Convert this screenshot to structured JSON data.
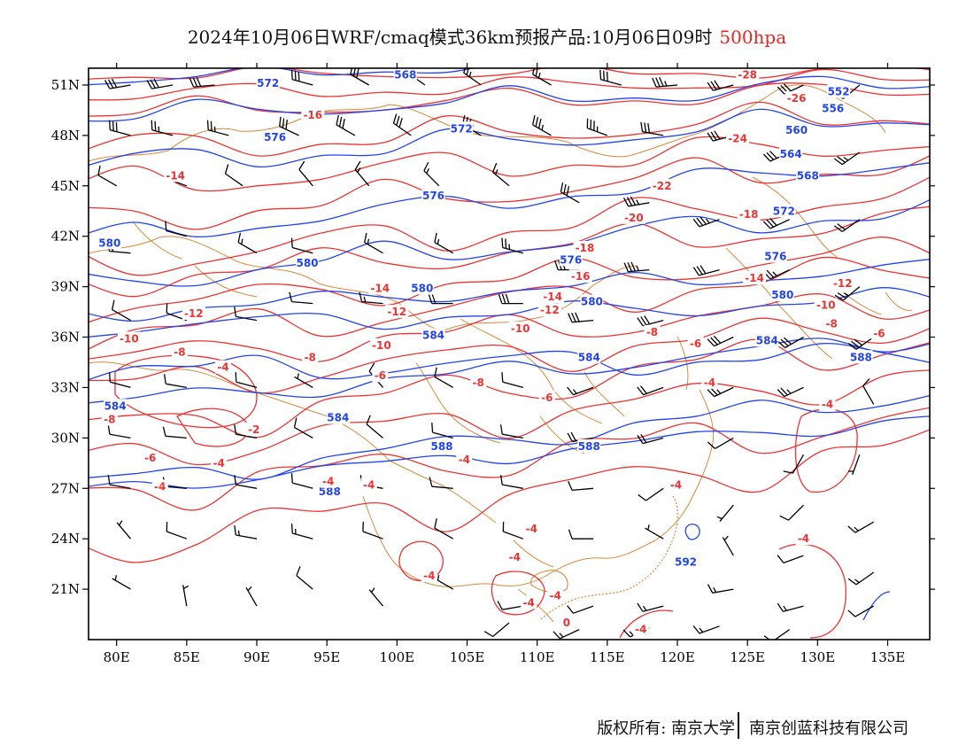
{
  "title": {
    "text": "2024年10月06日WRF/cmaq模式36km预报产品:10月06日09时",
    "level": "500hpa"
  },
  "map": {
    "lon_range": [
      78,
      138
    ],
    "lat_range": [
      18,
      52
    ],
    "xticks": [
      "80E",
      "85E",
      "90E",
      "95E",
      "100E",
      "105E",
      "110E",
      "115E",
      "120E",
      "125E",
      "130E",
      "135E"
    ],
    "xtick_values": [
      80,
      85,
      90,
      95,
      100,
      105,
      110,
      115,
      120,
      125,
      130,
      135
    ],
    "yticks": [
      "51N",
      "48N",
      "45N",
      "42N",
      "39N",
      "36N",
      "33N",
      "30N",
      "27N",
      "24N",
      "21N"
    ],
    "ytick_values": [
      51,
      48,
      45,
      42,
      39,
      36,
      33,
      30,
      27,
      24,
      21
    ],
    "colors": {
      "height_contour": "#2244ee",
      "temperature_contour": "#ee3333",
      "boundary": "#d98a3a",
      "wind_barb": "#000000"
    },
    "height_labels": [
      {
        "text": "572",
        "lon": 90.8,
        "lat": 51.1
      },
      {
        "text": "568",
        "lon": 100.6,
        "lat": 51.6
      },
      {
        "text": "552",
        "lon": 131.5,
        "lat": 50.6
      },
      {
        "text": "556",
        "lon": 131.1,
        "lat": 49.6
      },
      {
        "text": "576",
        "lon": 91.3,
        "lat": 47.9
      },
      {
        "text": "572",
        "lon": 104.6,
        "lat": 48.4
      },
      {
        "text": "560",
        "lon": 128.5,
        "lat": 48.3
      },
      {
        "text": "564",
        "lon": 128.1,
        "lat": 46.9
      },
      {
        "text": "568",
        "lon": 129.3,
        "lat": 45.6
      },
      {
        "text": "576",
        "lon": 102.6,
        "lat": 44.4
      },
      {
        "text": "572",
        "lon": 127.6,
        "lat": 43.5
      },
      {
        "text": "580",
        "lon": 79.5,
        "lat": 41.6
      },
      {
        "text": "580",
        "lon": 93.6,
        "lat": 40.4
      },
      {
        "text": "576",
        "lon": 112.4,
        "lat": 40.6
      },
      {
        "text": "576",
        "lon": 127.0,
        "lat": 40.8
      },
      {
        "text": "580",
        "lon": 101.8,
        "lat": 38.9
      },
      {
        "text": "580",
        "lon": 113.9,
        "lat": 38.1
      },
      {
        "text": "580",
        "lon": 127.5,
        "lat": 38.5
      },
      {
        "text": "584",
        "lon": 102.6,
        "lat": 36.1
      },
      {
        "text": "584",
        "lon": 126.4,
        "lat": 35.8
      },
      {
        "text": "584",
        "lon": 113.7,
        "lat": 34.8
      },
      {
        "text": "588",
        "lon": 133.1,
        "lat": 34.8
      },
      {
        "text": "584",
        "lon": 79.9,
        "lat": 31.9
      },
      {
        "text": "584",
        "lon": 95.8,
        "lat": 31.2
      },
      {
        "text": "588",
        "lon": 103.2,
        "lat": 29.5
      },
      {
        "text": "588",
        "lon": 113.7,
        "lat": 29.5
      },
      {
        "text": "588",
        "lon": 95.2,
        "lat": 26.8
      },
      {
        "text": "592",
        "lon": 120.6,
        "lat": 22.6
      }
    ],
    "temperature_labels": [
      {
        "text": "-28",
        "lon": 125.0,
        "lat": 51.6
      },
      {
        "text": "-26",
        "lon": 128.5,
        "lat": 50.2
      },
      {
        "text": "-16",
        "lon": 94.0,
        "lat": 49.2
      },
      {
        "text": "-24",
        "lon": 124.3,
        "lat": 47.8
      },
      {
        "text": "-14",
        "lon": 84.2,
        "lat": 45.6
      },
      {
        "text": "-22",
        "lon": 118.9,
        "lat": 45.0
      },
      {
        "text": "-20",
        "lon": 116.9,
        "lat": 43.1
      },
      {
        "text": "-18",
        "lon": 125.1,
        "lat": 43.3
      },
      {
        "text": "-18",
        "lon": 113.4,
        "lat": 41.3
      },
      {
        "text": "-16",
        "lon": 113.1,
        "lat": 39.6
      },
      {
        "text": "-14",
        "lon": 125.5,
        "lat": 39.5
      },
      {
        "text": "-12",
        "lon": 131.8,
        "lat": 39.2
      },
      {
        "text": "-14",
        "lon": 98.8,
        "lat": 38.9
      },
      {
        "text": "-14",
        "lon": 111.1,
        "lat": 38.4
      },
      {
        "text": "-12",
        "lon": 110.9,
        "lat": 37.6
      },
      {
        "text": "-10",
        "lon": 130.6,
        "lat": 37.9
      },
      {
        "text": "-12",
        "lon": 85.5,
        "lat": 37.4
      },
      {
        "text": "-12",
        "lon": 100.0,
        "lat": 37.5
      },
      {
        "text": "-10",
        "lon": 108.8,
        "lat": 36.5
      },
      {
        "text": "-8",
        "lon": 118.2,
        "lat": 36.3
      },
      {
        "text": "-8",
        "lon": 131.0,
        "lat": 36.8
      },
      {
        "text": "-10",
        "lon": 80.9,
        "lat": 35.9
      },
      {
        "text": "-10",
        "lon": 98.9,
        "lat": 35.5
      },
      {
        "text": "-6",
        "lon": 121.3,
        "lat": 35.6
      },
      {
        "text": "-6",
        "lon": 134.4,
        "lat": 36.2
      },
      {
        "text": "-8",
        "lon": 84.5,
        "lat": 35.1
      },
      {
        "text": "-8",
        "lon": 93.8,
        "lat": 34.8
      },
      {
        "text": "-6",
        "lon": 98.8,
        "lat": 33.7
      },
      {
        "text": "-8",
        "lon": 105.8,
        "lat": 33.3
      },
      {
        "text": "-4",
        "lon": 122.3,
        "lat": 33.3
      },
      {
        "text": "-6",
        "lon": 110.7,
        "lat": 32.4
      },
      {
        "text": "-4",
        "lon": 87.6,
        "lat": 34.2
      },
      {
        "text": "-4",
        "lon": 130.7,
        "lat": 32.0
      },
      {
        "text": "-8",
        "lon": 79.5,
        "lat": 31.1
      },
      {
        "text": "-2",
        "lon": 89.8,
        "lat": 30.5
      },
      {
        "text": "-6",
        "lon": 82.4,
        "lat": 28.8
      },
      {
        "text": "-4",
        "lon": 87.3,
        "lat": 28.5
      },
      {
        "text": "-4",
        "lon": 104.8,
        "lat": 28.7
      },
      {
        "text": "-4",
        "lon": 83.1,
        "lat": 27.1
      },
      {
        "text": "-4",
        "lon": 95.1,
        "lat": 27.4
      },
      {
        "text": "-4",
        "lon": 98.0,
        "lat": 27.2
      },
      {
        "text": "-4",
        "lon": 119.9,
        "lat": 27.2
      },
      {
        "text": "-4",
        "lon": 109.6,
        "lat": 24.6
      },
      {
        "text": "-4",
        "lon": 129.0,
        "lat": 24.0
      },
      {
        "text": "-4",
        "lon": 108.4,
        "lat": 22.9
      },
      {
        "text": "-4",
        "lon": 102.3,
        "lat": 21.8
      },
      {
        "text": "-4",
        "lon": 109.4,
        "lat": 20.2
      },
      {
        "text": "-4",
        "lon": 111.3,
        "lat": 20.6
      },
      {
        "text": "0",
        "lon": 112.1,
        "lat": 19.0
      },
      {
        "text": "-4",
        "lon": 117.4,
        "lat": 18.6
      }
    ],
    "wind_barbs": [
      {
        "lon": 81,
        "lat": 51,
        "dir": 260,
        "spd": 30
      },
      {
        "lon": 84,
        "lat": 51,
        "dir": 260,
        "spd": 30
      },
      {
        "lon": 87,
        "lat": 51,
        "dir": 265,
        "spd": 30
      },
      {
        "lon": 94,
        "lat": 51,
        "dir": 285,
        "spd": 30
      },
      {
        "lon": 98,
        "lat": 51,
        "dir": 300,
        "spd": 30
      },
      {
        "lon": 102,
        "lat": 51,
        "dir": 305,
        "spd": 25
      },
      {
        "lon": 106,
        "lat": 51,
        "dir": 305,
        "spd": 25
      },
      {
        "lon": 111,
        "lat": 51,
        "dir": 300,
        "spd": 25
      },
      {
        "lon": 116,
        "lat": 51,
        "dir": 285,
        "spd": 30
      },
      {
        "lon": 120,
        "lat": 51,
        "dir": 265,
        "spd": 35
      },
      {
        "lon": 124,
        "lat": 51,
        "dir": 255,
        "spd": 30
      },
      {
        "lon": 129,
        "lat": 51,
        "dir": 245,
        "spd": 30
      },
      {
        "lon": 133,
        "lat": 51,
        "dir": 230,
        "spd": 30
      },
      {
        "lon": 81,
        "lat": 48,
        "dir": 285,
        "spd": 30
      },
      {
        "lon": 84,
        "lat": 48,
        "dir": 285,
        "spd": 25
      },
      {
        "lon": 88,
        "lat": 48,
        "dir": 285,
        "spd": 25
      },
      {
        "lon": 93,
        "lat": 48,
        "dir": 295,
        "spd": 30
      },
      {
        "lon": 97,
        "lat": 48,
        "dir": 300,
        "spd": 30
      },
      {
        "lon": 101,
        "lat": 48,
        "dir": 305,
        "spd": 30
      },
      {
        "lon": 106,
        "lat": 48,
        "dir": 300,
        "spd": 35
      },
      {
        "lon": 111,
        "lat": 48,
        "dir": 300,
        "spd": 35
      },
      {
        "lon": 115,
        "lat": 48,
        "dir": 290,
        "spd": 35
      },
      {
        "lon": 119,
        "lat": 48,
        "dir": 280,
        "spd": 30
      },
      {
        "lon": 124,
        "lat": 48,
        "dir": 255,
        "spd": 30
      },
      {
        "lon": 128,
        "lat": 47,
        "dir": 245,
        "spd": 30
      },
      {
        "lon": 133,
        "lat": 47,
        "dir": 235,
        "spd": 25
      },
      {
        "lon": 80,
        "lat": 45,
        "dir": 300,
        "spd": 10
      },
      {
        "lon": 85,
        "lat": 45,
        "dir": 290,
        "spd": 10
      },
      {
        "lon": 89,
        "lat": 45,
        "dir": 305,
        "spd": 10
      },
      {
        "lon": 94,
        "lat": 45,
        "dir": 320,
        "spd": 10
      },
      {
        "lon": 98,
        "lat": 45,
        "dir": 320,
        "spd": 15
      },
      {
        "lon": 103,
        "lat": 45,
        "dir": 315,
        "spd": 15
      },
      {
        "lon": 108,
        "lat": 45,
        "dir": 310,
        "spd": 15
      },
      {
        "lon": 113,
        "lat": 44,
        "dir": 300,
        "spd": 30
      },
      {
        "lon": 118,
        "lat": 44,
        "dir": 260,
        "spd": 35
      },
      {
        "lon": 123,
        "lat": 43,
        "dir": 250,
        "spd": 35
      },
      {
        "lon": 128,
        "lat": 43,
        "dir": 245,
        "spd": 30
      },
      {
        "lon": 133,
        "lat": 43,
        "dir": 235,
        "spd": 20
      },
      {
        "lon": 81,
        "lat": 41,
        "dir": 275,
        "spd": 20
      },
      {
        "lon": 85,
        "lat": 42,
        "dir": 285,
        "spd": 10
      },
      {
        "lon": 90,
        "lat": 41,
        "dir": 300,
        "spd": 15
      },
      {
        "lon": 94,
        "lat": 41,
        "dir": 285,
        "spd": 10
      },
      {
        "lon": 99,
        "lat": 41,
        "dir": 300,
        "spd": 15
      },
      {
        "lon": 104,
        "lat": 41,
        "dir": 300,
        "spd": 15
      },
      {
        "lon": 109,
        "lat": 41,
        "dir": 285,
        "spd": 25
      },
      {
        "lon": 113,
        "lat": 40,
        "dir": 270,
        "spd": 30
      },
      {
        "lon": 118,
        "lat": 40,
        "dir": 265,
        "spd": 35
      },
      {
        "lon": 123,
        "lat": 40,
        "dir": 255,
        "spd": 30
      },
      {
        "lon": 128,
        "lat": 40,
        "dir": 245,
        "spd": 25
      },
      {
        "lon": 133,
        "lat": 39,
        "dir": 230,
        "spd": 25
      },
      {
        "lon": 81,
        "lat": 37,
        "dir": 300,
        "spd": 10
      },
      {
        "lon": 85,
        "lat": 37,
        "dir": 290,
        "spd": 10
      },
      {
        "lon": 90,
        "lat": 37,
        "dir": 280,
        "spd": 10
      },
      {
        "lon": 94,
        "lat": 38,
        "dir": 275,
        "spd": 10
      },
      {
        "lon": 99,
        "lat": 38,
        "dir": 275,
        "spd": 15
      },
      {
        "lon": 104,
        "lat": 38,
        "dir": 270,
        "spd": 20
      },
      {
        "lon": 109,
        "lat": 38,
        "dir": 270,
        "spd": 30
      },
      {
        "lon": 114,
        "lat": 37,
        "dir": 265,
        "spd": 30
      },
      {
        "lon": 119,
        "lat": 37,
        "dir": 255,
        "spd": 30
      },
      {
        "lon": 124,
        "lat": 36,
        "dir": 245,
        "spd": 30
      },
      {
        "lon": 129,
        "lat": 36,
        "dir": 240,
        "spd": 30
      },
      {
        "lon": 134,
        "lat": 36,
        "dir": 235,
        "spd": 30
      },
      {
        "lon": 81,
        "lat": 33,
        "dir": 285,
        "spd": 10
      },
      {
        "lon": 85,
        "lat": 33,
        "dir": 280,
        "spd": 10
      },
      {
        "lon": 90,
        "lat": 33,
        "dir": 285,
        "spd": 10
      },
      {
        "lon": 94,
        "lat": 33,
        "dir": 300,
        "spd": 5
      },
      {
        "lon": 99,
        "lat": 33,
        "dir": 320,
        "spd": 10
      },
      {
        "lon": 104,
        "lat": 33,
        "dir": 300,
        "spd": 10
      },
      {
        "lon": 109,
        "lat": 33,
        "dir": 285,
        "spd": 10
      },
      {
        "lon": 114,
        "lat": 33,
        "dir": 250,
        "spd": 15
      },
      {
        "lon": 119,
        "lat": 33,
        "dir": 250,
        "spd": 20
      },
      {
        "lon": 124,
        "lat": 33,
        "dir": 245,
        "spd": 25
      },
      {
        "lon": 129,
        "lat": 33,
        "dir": 245,
        "spd": 25
      },
      {
        "lon": 134,
        "lat": 32,
        "dir": 330,
        "spd": 10
      },
      {
        "lon": 81,
        "lat": 30,
        "dir": 280,
        "spd": 10
      },
      {
        "lon": 85,
        "lat": 30,
        "dir": 275,
        "spd": 10
      },
      {
        "lon": 90,
        "lat": 30,
        "dir": 280,
        "spd": 10
      },
      {
        "lon": 94,
        "lat": 30,
        "dir": 300,
        "spd": 10
      },
      {
        "lon": 99,
        "lat": 30,
        "dir": 310,
        "spd": 10
      },
      {
        "lon": 104,
        "lat": 30,
        "dir": 285,
        "spd": 10
      },
      {
        "lon": 109,
        "lat": 30,
        "dir": 280,
        "spd": 10
      },
      {
        "lon": 114,
        "lat": 30,
        "dir": 260,
        "spd": 20
      },
      {
        "lon": 119,
        "lat": 30,
        "dir": 255,
        "spd": 20
      },
      {
        "lon": 124,
        "lat": 30,
        "dir": 240,
        "spd": 10
      },
      {
        "lon": 129,
        "lat": 29,
        "dir": 210,
        "spd": 10
      },
      {
        "lon": 133,
        "lat": 29,
        "dir": 200,
        "spd": 5
      },
      {
        "lon": 81,
        "lat": 27,
        "dir": 280,
        "spd": 10
      },
      {
        "lon": 85,
        "lat": 27,
        "dir": 275,
        "spd": 10
      },
      {
        "lon": 90,
        "lat": 27,
        "dir": 280,
        "spd": 10
      },
      {
        "lon": 94,
        "lat": 27,
        "dir": 285,
        "spd": 10
      },
      {
        "lon": 99,
        "lat": 27,
        "dir": 280,
        "spd": 10
      },
      {
        "lon": 104,
        "lat": 27,
        "dir": 275,
        "spd": 10
      },
      {
        "lon": 109,
        "lat": 27,
        "dir": 280,
        "spd": 10
      },
      {
        "lon": 114,
        "lat": 27,
        "dir": 265,
        "spd": 10
      },
      {
        "lon": 119,
        "lat": 27,
        "dir": 235,
        "spd": 10
      },
      {
        "lon": 124,
        "lat": 26,
        "dir": 220,
        "spd": 5
      },
      {
        "lon": 129,
        "lat": 26,
        "dir": 225,
        "spd": 10
      },
      {
        "lon": 134,
        "lat": 25,
        "dir": 240,
        "spd": 15
      },
      {
        "lon": 81,
        "lat": 24,
        "dir": 320,
        "spd": 5
      },
      {
        "lon": 85,
        "lat": 24,
        "dir": 290,
        "spd": 10
      },
      {
        "lon": 90,
        "lat": 24,
        "dir": 280,
        "spd": 15
      },
      {
        "lon": 94,
        "lat": 24,
        "dir": 285,
        "spd": 15
      },
      {
        "lon": 99,
        "lat": 24,
        "dir": 290,
        "spd": 10
      },
      {
        "lon": 104,
        "lat": 24,
        "dir": 300,
        "spd": 10
      },
      {
        "lon": 109,
        "lat": 24,
        "dir": 290,
        "spd": 10
      },
      {
        "lon": 114,
        "lat": 24,
        "dir": 270,
        "spd": 10
      },
      {
        "lon": 119,
        "lat": 24,
        "dir": 300,
        "spd": 5
      },
      {
        "lon": 124,
        "lat": 23,
        "dir": 330,
        "spd": 5
      },
      {
        "lon": 129,
        "lat": 23,
        "dir": 250,
        "spd": 10
      },
      {
        "lon": 134,
        "lat": 22,
        "dir": 235,
        "spd": 15
      },
      {
        "lon": 81,
        "lat": 21,
        "dir": 300,
        "spd": 5
      },
      {
        "lon": 85,
        "lat": 20,
        "dir": 350,
        "spd": 5
      },
      {
        "lon": 90,
        "lat": 20,
        "dir": 330,
        "spd": 5
      },
      {
        "lon": 94,
        "lat": 21,
        "dir": 310,
        "spd": 10
      },
      {
        "lon": 99,
        "lat": 20,
        "dir": 320,
        "spd": 5
      },
      {
        "lon": 104,
        "lat": 21,
        "dir": 300,
        "spd": 5
      },
      {
        "lon": 109,
        "lat": 20,
        "dir": 260,
        "spd": 10
      },
      {
        "lon": 114,
        "lat": 20,
        "dir": 250,
        "spd": 10
      },
      {
        "lon": 119,
        "lat": 20,
        "dir": 255,
        "spd": 15
      },
      {
        "lon": 124,
        "lat": 21,
        "dir": 260,
        "spd": 15
      },
      {
        "lon": 129,
        "lat": 20,
        "dir": 255,
        "spd": 15
      },
      {
        "lon": 134,
        "lat": 20,
        "dir": 240,
        "spd": 10
      },
      {
        "lon": 108,
        "lat": 19,
        "dir": 230,
        "spd": 10
      },
      {
        "lon": 113,
        "lat": 18.6,
        "dir": 245,
        "spd": 15
      },
      {
        "lon": 118,
        "lat": 18.7,
        "dir": 245,
        "spd": 15
      },
      {
        "lon": 123,
        "lat": 18.8,
        "dir": 250,
        "spd": 15
      },
      {
        "lon": 128,
        "lat": 18.6,
        "dir": 235,
        "spd": 10
      }
    ]
  },
  "footer": {
    "copyright": "版权所有: 南京大学",
    "company": "南京创蓝科技有限公司"
  }
}
